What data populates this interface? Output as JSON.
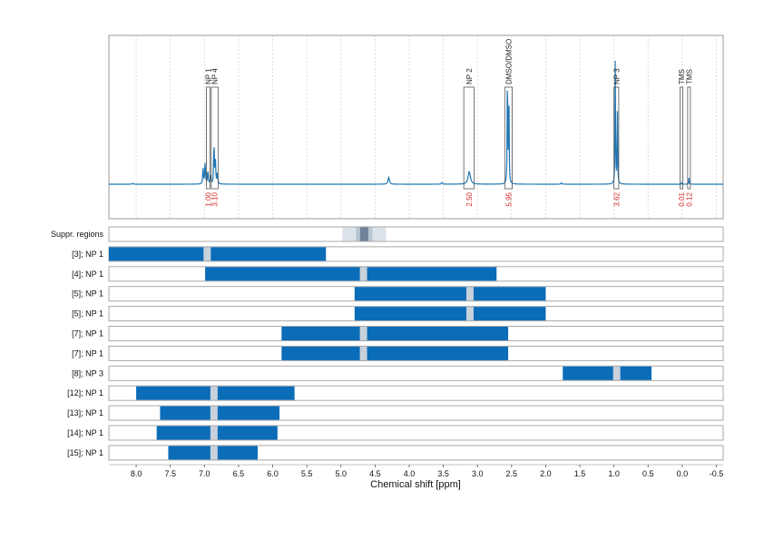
{
  "chart_data": {
    "type": "line",
    "xlabel": "Chemical shift [ppm]",
    "x_range": [
      8.4,
      -0.6
    ],
    "x_reversed": true,
    "x_ticks": [
      "8.0",
      "7.5",
      "7.0",
      "6.5",
      "6.0",
      "5.5",
      "5.0",
      "4.5",
      "4.0",
      "3.5",
      "3.0",
      "2.5",
      "2.0",
      "1.5",
      "1.0",
      "0.5",
      "0.0",
      "-0.5"
    ],
    "x_tick_values": [
      8.0,
      7.5,
      7.0,
      6.5,
      6.0,
      5.5,
      5.0,
      4.5,
      4.0,
      3.5,
      3.0,
      2.5,
      2.0,
      1.5,
      1.0,
      0.5,
      0.0,
      -0.5
    ],
    "spectrum": {
      "color": "#1f77b4",
      "baseline": 0.0,
      "peaks": [
        {
          "shift": 8.05,
          "height": 0.006,
          "width": 0.01
        },
        {
          "shift": 7.02,
          "height": 0.12,
          "width": 0.006
        },
        {
          "shift": 6.99,
          "height": 0.16,
          "width": 0.006
        },
        {
          "shift": 6.95,
          "height": 0.1,
          "width": 0.006
        },
        {
          "shift": 6.91,
          "height": 0.06,
          "width": 0.006
        },
        {
          "shift": 6.86,
          "height": 0.32,
          "width": 0.005
        },
        {
          "shift": 6.84,
          "height": 0.18,
          "width": 0.006
        },
        {
          "shift": 6.81,
          "height": 0.08,
          "width": 0.006
        },
        {
          "shift": 4.3,
          "height": 0.05,
          "width": 0.012
        },
        {
          "shift": 3.52,
          "height": 0.012,
          "width": 0.01
        },
        {
          "shift": 3.12,
          "height": 0.09,
          "width": 0.02
        },
        {
          "shift": 2.56,
          "height": 0.97,
          "width": 0.004
        },
        {
          "shift": 2.54,
          "height": 0.8,
          "width": 0.004
        },
        {
          "shift": 1.77,
          "height": 0.01,
          "width": 0.008
        },
        {
          "shift": 0.98,
          "height": 0.98,
          "width": 0.004
        },
        {
          "shift": 0.95,
          "height": 0.52,
          "width": 0.004
        },
        {
          "shift": 0.01,
          "height": 0.01,
          "width": 0.004
        },
        {
          "shift": -0.1,
          "height": 0.05,
          "width": 0.004
        }
      ]
    },
    "peak_annotations": [
      {
        "label": "NP 1",
        "from": 6.97,
        "to": 6.92,
        "integral": "1.00"
      },
      {
        "label": "NP 4",
        "from": 6.9,
        "to": 6.8,
        "integral": "3.10"
      },
      {
        "label": "NP 2",
        "from": 3.2,
        "to": 3.05,
        "integral": "2.50"
      },
      {
        "label": "DMSO/DMSO",
        "from": 2.6,
        "to": 2.49,
        "integral": "5.95"
      },
      {
        "label": "NP 3",
        "from": 1.0,
        "to": 0.93,
        "integral": "3.62"
      },
      {
        "label": "TMS",
        "from": 0.03,
        "to": -0.01,
        "integral": "0.01"
      },
      {
        "label": "TMS",
        "from": -0.08,
        "to": -0.12,
        "integral": "0.12"
      }
    ],
    "suppressed_regions": {
      "label": "Suppr. regions",
      "bands": [
        {
          "from": 4.98,
          "to": 4.34,
          "shade": "#dde3ea"
        },
        {
          "from": 4.78,
          "to": 4.54,
          "shade": "#b8c5d2"
        },
        {
          "from": 4.72,
          "to": 4.6,
          "shade": "#6f8297"
        }
      ]
    },
    "range_rows": [
      {
        "label": "[3]; NP 1",
        "from": 8.4,
        "to": 5.22,
        "gap": 6.96
      },
      {
        "label": "[4]; NP 1",
        "from": 6.99,
        "to": 2.72,
        "gap": 4.67
      },
      {
        "label": "[5]; NP 1",
        "from": 4.8,
        "to": 2.0,
        "gap": 3.11
      },
      {
        "label": "[5]; NP 1",
        "from": 4.8,
        "to": 2.0,
        "gap": 3.11
      },
      {
        "label": "[7]; NP 1",
        "from": 5.87,
        "to": 2.55,
        "gap": 4.67
      },
      {
        "label": "[7]; NP 1",
        "from": 5.87,
        "to": 2.55,
        "gap": 4.67
      },
      {
        "label": "[8]; NP 3",
        "from": 1.75,
        "to": 0.45,
        "gap": 0.96
      },
      {
        "label": "[12]; NP 1",
        "from": 8.0,
        "to": 5.68,
        "gap": 6.86
      },
      {
        "label": "[13]; NP 1",
        "from": 7.65,
        "to": 5.9,
        "gap": 6.86
      },
      {
        "label": "[14]; NP 1",
        "from": 7.7,
        "to": 5.93,
        "gap": 6.86
      },
      {
        "label": "[15]; NP 1",
        "from": 7.53,
        "to": 6.22,
        "gap": 6.86
      }
    ],
    "range_color": "#0b6cb8",
    "gap_color": "#c9d1da",
    "grid": true
  }
}
